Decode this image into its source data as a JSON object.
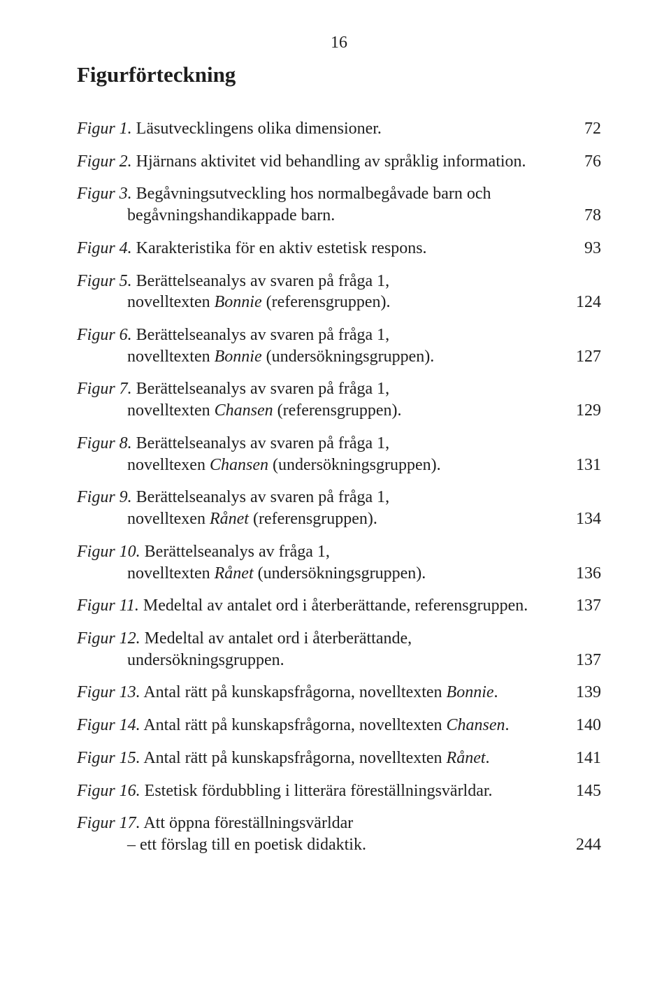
{
  "page_number": "16",
  "title": "Figurförteckning",
  "text_color": "#1e1e1e",
  "background_color": "#ffffff",
  "body_fontsize": 24,
  "title_fontsize": 31,
  "entries": [
    {
      "label": "Figur 1.",
      "line1": " Läsutvecklingens olika dimensioner.",
      "page": "72"
    },
    {
      "label": "Figur 2.",
      "line1": " Hjärnans aktivitet vid behandling av språklig information.",
      "page": "76"
    },
    {
      "label": "Figur 3.",
      "line1": " Begåvningsutveckling hos normalbegåvade barn och",
      "line2": "begåvningshandikappade barn.",
      "page": "78"
    },
    {
      "label": "Figur 4.",
      "line1": " Karakteristika för en aktiv estetisk respons.",
      "page": "93"
    },
    {
      "label": "Figur 5.",
      "line1": " Berättelseanalys av svaren på fråga 1,",
      "line2_pre": "novelltexten ",
      "line2_ital": "Bonnie",
      "line2_post": " (referensgruppen).",
      "page": "124"
    },
    {
      "label": "Figur 6.",
      "line1": " Berättelseanalys av svaren på fråga 1,",
      "line2_pre": "novelltexten ",
      "line2_ital": "Bonnie",
      "line2_post": " (undersökningsgruppen).",
      "page": "127"
    },
    {
      "label": "Figur 7.",
      "line1": " Berättelseanalys av svaren på fråga 1,",
      "line2_pre": "novelltexten ",
      "line2_ital": "Chansen",
      "line2_post": " (referensgruppen).",
      "page": "129"
    },
    {
      "label": "Figur 8.",
      "line1": " Berättelseanalys av svaren på fråga 1,",
      "line2_pre": "novelltexen ",
      "line2_ital": "Chansen",
      "line2_post": "  (undersökningsgruppen).",
      "page": "131"
    },
    {
      "label": "Figur 9.",
      "line1": " Berättelseanalys av svaren på fråga 1,",
      "line2_pre": "novelltexen ",
      "line2_ital": "Rånet",
      "line2_post": " (referensgruppen).",
      "page": "134"
    },
    {
      "label": "Figur 10.",
      "line1": " Berättelseanalys av fråga 1,",
      "line2_pre": "novelltexten ",
      "line2_ital": "Rånet",
      "line2_post": " (undersökningsgruppen).",
      "page": "136"
    },
    {
      "label": "Figur 11.",
      "line1": " Medeltal av antalet ord i återberättande, referensgruppen.",
      "page": "137"
    },
    {
      "label": "Figur 12.",
      "line1": " Medeltal av antalet ord i återberättande,",
      "line2": "undersökningsgruppen.",
      "page": "137"
    },
    {
      "label": "Figur 13.",
      "line1_pre": " Antal rätt på kunskapsfrågorna, novelltexten ",
      "line1_ital": "Bonnie",
      "line1_post": ".",
      "page": "139"
    },
    {
      "label": "Figur 14.",
      "line1_pre": " Antal rätt på kunskapsfrågorna, novelltexten ",
      "line1_ital": "Chansen",
      "line1_post": ".",
      "page": "140"
    },
    {
      "label": "Figur 15.",
      "line1_pre": " Antal rätt på kunskapsfrågorna, novelltexten ",
      "line1_ital": "Rånet",
      "line1_post": ".",
      "page": "141"
    },
    {
      "label": "Figur 16.",
      "line1": " Estetisk fördubbling i litterära föreställningsvärldar.",
      "page": "145"
    },
    {
      "label": "Figur 17.",
      "line1": " Att öppna föreställningsvärldar",
      "line2": "– ett förslag till en poetisk didaktik.",
      "page": "244"
    }
  ]
}
